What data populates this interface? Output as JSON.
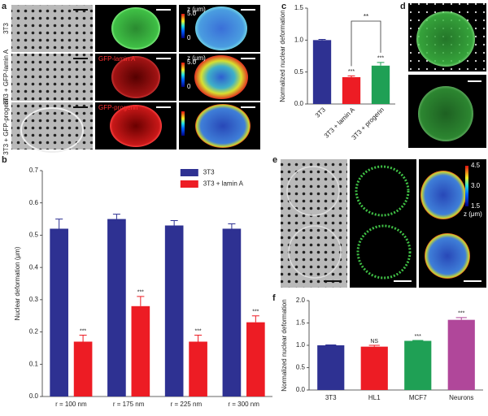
{
  "panel_labels": [
    "a",
    "b",
    "c",
    "d",
    "e",
    "f"
  ],
  "panel_a": {
    "rows": [
      "3T3",
      "3T3 + GFP-lamin A",
      "3T3 + GFP-progerin"
    ],
    "channel_labels": [
      "GFP-lamin A",
      "GFP-progerin"
    ],
    "colorbar": {
      "title": "z (μm)",
      "ticks": [
        "5.0",
        "0"
      ]
    }
  },
  "panel_e": {
    "colorbar": {
      "title": "z (μm)",
      "ticks": [
        "4.5",
        "3.0",
        "1.5"
      ]
    }
  },
  "chart_data": [
    {
      "type": "bar",
      "ylabel": "Nuclear deformation (μm)",
      "categories": [
        "r = 100 nm",
        "r = 175 nm",
        "r = 225 nm",
        "r = 300 nm"
      ],
      "series": [
        {
          "name": "3T3",
          "color": "#2e3192",
          "values": [
            0.52,
            0.55,
            0.53,
            0.52
          ],
          "errors": [
            0.03,
            0.015,
            0.015,
            0.015
          ]
        },
        {
          "name": "3T3 + lamin A",
          "color": "#ed1c24",
          "values": [
            0.17,
            0.28,
            0.17,
            0.23
          ],
          "errors": [
            0.02,
            0.03,
            0.02,
            0.02
          ],
          "significance": [
            "***",
            "***",
            "***",
            "***"
          ]
        }
      ],
      "ylim": [
        0,
        0.7
      ],
      "yticks": [
        {
          "value": 0,
          "label": "0.0"
        },
        0.1,
        0.2,
        0.3,
        0.4,
        0.5,
        0.6,
        0.7
      ],
      "legend": "top-right"
    },
    {
      "type": "bar",
      "ylabel": "Normalized nuclear deformation",
      "categories": [
        "3T3",
        "3T3 + lamin A",
        "3T3 + progerin"
      ],
      "values": [
        1.0,
        0.42,
        0.6
      ],
      "errors": [
        0.01,
        0.02,
        0.05
      ],
      "colors": [
        "#2e3192",
        "#ed1c24",
        "#1fa055"
      ],
      "significance": [
        null,
        "***",
        "***"
      ],
      "bracket_label": "**",
      "ylim": [
        0,
        1.5
      ],
      "yticks": [
        {
          "value": 0,
          "label": "0.0"
        },
        0.5,
        {
          "value": 1,
          "label": "1.0"
        },
        1.5
      ]
    },
    {
      "type": "bar",
      "ylabel": "Normalized nuclear deformation",
      "categories": [
        "3T3",
        "HL1",
        "MCF7",
        "Neurons"
      ],
      "values": [
        1.0,
        0.97,
        1.1,
        1.57
      ],
      "errors": [
        0.01,
        0.03,
        0.01,
        0.05
      ],
      "colors": [
        "#2e3192",
        "#ed1c24",
        "#1fa055",
        "#b0479a"
      ],
      "significance": [
        null,
        "NS",
        "***",
        "***"
      ],
      "ylim": [
        0,
        2.0
      ],
      "yticks": [
        {
          "value": 0,
          "label": "0.0"
        },
        0.5,
        {
          "value": 1,
          "label": "1.0"
        },
        1.5,
        {
          "value": 2,
          "label": "2.0"
        }
      ]
    }
  ]
}
